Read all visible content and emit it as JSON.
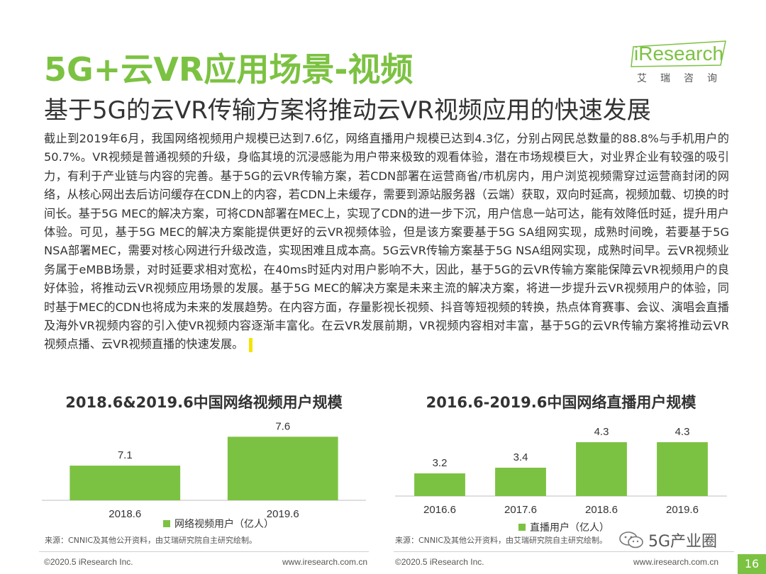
{
  "header": {
    "title": "5G+云VR应用场景-视频",
    "subtitle": "基于5G的云VR传输方案将推动云VR视频应用的快速发展"
  },
  "logo": {
    "text": "iResearch",
    "cn": "艾瑞咨询"
  },
  "body": {
    "paragraph": "截止到2019年6月，我国网络视频用户规模已达到7.6亿，网络直播用户规模已达到4.3亿，分别占网民总数量的88.8%与手机用户的50.7%。VR视频是普通视频的升级，身临其境的沉浸感能为用户带来极致的观看体验，潜在市场规模巨大，对业界企业有较强的吸引力，有利于产业链与内容的完善。基于5G的云VR传输方案，若CDN部署在运营商省/市机房内，用户浏览视频需穿过运营商封闭的网络，从核心网出去后访问缓存在CDN上的内容，若CDN上未缓存，需要到源站服务器（云端）获取，双向时延高，视频加载、切换的时间长。基于5G MEC的解决方案，可将CDN部署在MEC上，实现了CDN的进一步下沉，用户信息一站可达，能有效降低时延，提升用户体验。可见，基于5G MEC的解决方案能提供更好的云VR视频体验，但是该方案要基于5G SA组网实现，成熟时间晚，若要基于5G NSA部署MEC，需要对核心网进行升级改造，实现困难且成本高。5G云VR传输方案基于5G NSA组网实现，成熟时间早。云VR视频业务属于eMBB场景，对时延要求相对宽松，在40ms时延内对用户影响不大，因此，基于5G的云VR传输方案能保障云VR视频用户的良好体验，将推动云VR视频应用场景的发展。基于5G MEC的解决方案是未来主流的解决方案，将进一步提升云VR视频用户的体验，同时基于MEC的CDN也将成为未来的发展趋势。在内容方面，存量影视长视频、抖音等短视频的转换，热点体育赛事、会议、演唱会直播及海外VR视频内容的引入使VR视频内容逐渐丰富化。在云VR发展前期，VR视频内容相对丰富，基于5G的云VR传输方案将推动云VR视频点播、云VR视频直播的快速发展。"
  },
  "chart_data": [
    {
      "type": "bar",
      "title": "2018.6&2019.6中国网络视频用户规模",
      "categories": [
        "2018.6",
        "2019.6"
      ],
      "series": [
        {
          "name": "网络视频用户（亿人）",
          "values": [
            7.1,
            7.6
          ],
          "labels": [
            "7.1",
            "7.6"
          ]
        }
      ],
      "ylim": [
        6.5,
        7.8
      ],
      "color": "#7cc242",
      "source": "来源：CNNIC及其他公开资料，由艾瑞研究院自主研究绘制。"
    },
    {
      "type": "bar",
      "title": "2016.6-2019.6中国网络直播用户规模",
      "categories": [
        "2016.6",
        "2017.6",
        "2018.6",
        "2019.6"
      ],
      "series": [
        {
          "name": "直播用户（亿人）",
          "values": [
            3.2,
            3.4,
            4.3,
            4.3
          ],
          "labels": [
            "3.2",
            "3.4",
            "4.3",
            "4.3"
          ]
        }
      ],
      "ylim": [
        2.4,
        4.9
      ],
      "color": "#7cc242",
      "source": "来源：CNNIC及其他公开资料，由艾瑞研究院自主研究绘制。"
    }
  ],
  "footer": {
    "left_copyright": "©2020.5 iResearch Inc.",
    "left_url": "www.iresearch.com.cn",
    "right_copyright": "©2020.5 iResearch Inc.",
    "right_url": "www.iresearch.com.cn",
    "watermark": "5G产业圈",
    "page": "16"
  }
}
